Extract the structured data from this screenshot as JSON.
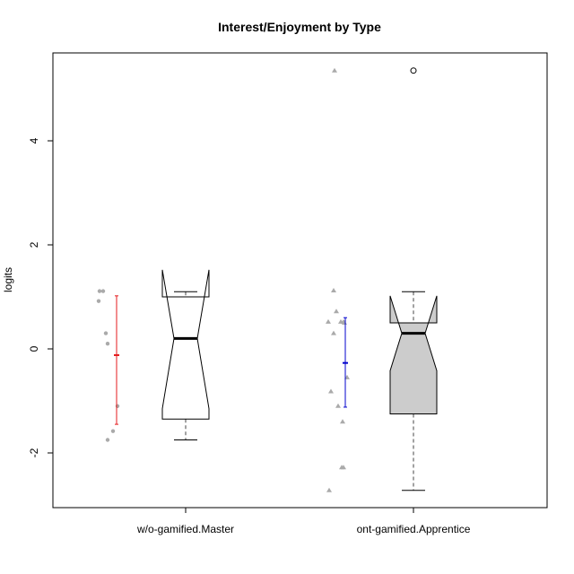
{
  "chart_data": {
    "type": "boxplot",
    "title": "Interest/Enjoyment by Type",
    "xlabel": "",
    "ylabel": "logits",
    "ylim": [
      -3.0,
      5.6
    ],
    "yticks": [
      -2,
      0,
      2,
      4
    ],
    "ytick_labels": [
      "-2",
      "0",
      "2",
      "4"
    ],
    "grid": false,
    "notched": true,
    "groups": [
      {
        "label": "w/o-gamified.Master",
        "box_color": "#ffffff",
        "ci_color": "#e41a1c",
        "point_shape": "circle",
        "whisker_style": "dashed",
        "stats": {
          "whisker_low": -1.75,
          "q1": -1.35,
          "median": 0.2,
          "q3": 1.0,
          "whisker_high": 1.1,
          "notch_low": -1.15,
          "notch_high": 1.52
        },
        "mean_ci": {
          "mean": -0.12,
          "low": -1.45,
          "high": 1.02
        },
        "points": [
          {
            "x": -0.09,
            "y": 1.11
          },
          {
            "x": -0.05,
            "y": 1.11
          },
          {
            "x": -0.1,
            "y": 0.92
          },
          {
            "x": -0.02,
            "y": 0.3
          },
          {
            "x": 0.0,
            "y": 0.1
          },
          {
            "x": 0.06,
            "y": -1.58
          },
          {
            "x": 0.0,
            "y": -1.75
          },
          {
            "x": 0.11,
            "y": -1.1
          }
        ],
        "outliers": []
      },
      {
        "label": "ont-gamified.Apprentice",
        "box_color": "#cccccc",
        "ci_color": "#0000cc",
        "point_shape": "triangle",
        "whisker_style": "dashed",
        "stats": {
          "whisker_low": -2.72,
          "q1": -1.25,
          "median": 0.3,
          "q3": 0.5,
          "whisker_high": 1.1,
          "notch_low": -0.42,
          "notch_high": 1.02
        },
        "mean_ci": {
          "mean": -0.27,
          "low": -1.12,
          "high": 0.6
        },
        "points": [
          {
            "x": -0.05,
            "y": 5.35
          },
          {
            "x": -0.06,
            "y": 1.12
          },
          {
            "x": -0.03,
            "y": 0.72
          },
          {
            "x": -0.12,
            "y": 0.52
          },
          {
            "x": 0.02,
            "y": 0.52
          },
          {
            "x": 0.05,
            "y": 0.52
          },
          {
            "x": 0.06,
            "y": 0.5
          },
          {
            "x": -0.06,
            "y": 0.3
          },
          {
            "x": 0.09,
            "y": -0.55
          },
          {
            "x": -0.09,
            "y": -0.82
          },
          {
            "x": -0.01,
            "y": -1.1
          },
          {
            "x": 0.04,
            "y": -1.4
          },
          {
            "x": 0.03,
            "y": -2.28
          },
          {
            "x": 0.05,
            "y": -2.28
          },
          {
            "x": -0.11,
            "y": -2.72
          }
        ],
        "outliers": [
          5.35
        ]
      }
    ]
  }
}
